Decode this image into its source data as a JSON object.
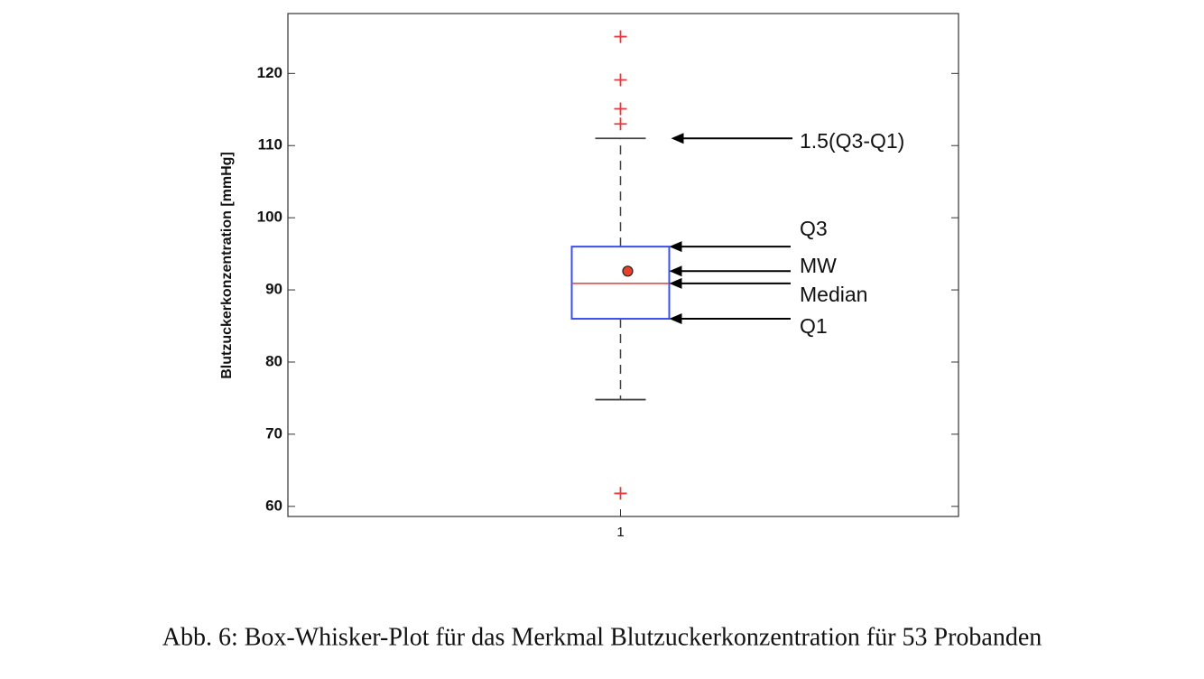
{
  "chart_data": {
    "type": "box",
    "y_label": "Blutzuckerkonzentration [mmHg]",
    "caption": "Abb. 6: Box-Whisker-Plot für das Merkmal Blutzuckerkonzentration für 53 Probanden",
    "categories": [
      "1"
    ],
    "boxes": [
      {
        "whisker_low": 74.8,
        "q1": 86,
        "median": 90.9,
        "q3": 96,
        "whisker_high": 111,
        "mean": 92.6,
        "outliers": [
          125.1,
          119.1,
          115.1,
          113,
          61.8
        ]
      }
    ],
    "box_color": "#3a4ff0",
    "median_color": "#e83a3a",
    "outlier_color": "#e83a3a",
    "mean_color": "#e8402a",
    "whisker_color": "#444444",
    "annotations": [
      "1.5(Q3-Q1)",
      "Q3",
      "MW",
      "Median",
      "Q1"
    ],
    "ylim": [
      58.6,
      128.3
    ],
    "yticks": [
      60,
      70,
      80,
      90,
      100,
      110,
      120
    ]
  }
}
